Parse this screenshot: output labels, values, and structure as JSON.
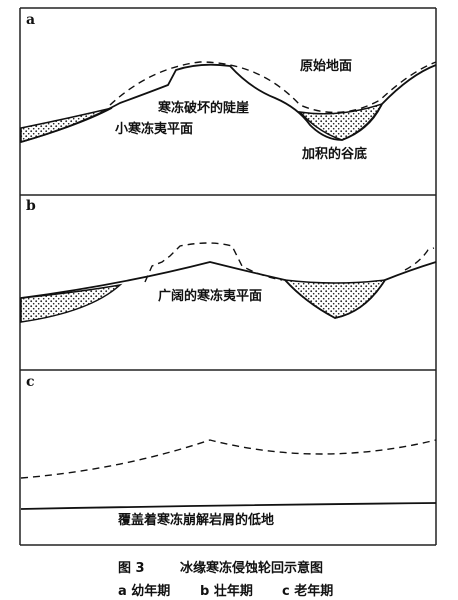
{
  "panels": [
    {
      "label": "a",
      "annotations": [
        "原始地面",
        "寒冻破坏的陡崖",
        "小寒冻夷平面",
        "加积的谷底"
      ]
    },
    {
      "label": "b",
      "annotations": [
        "广阔的寒冻夷平面"
      ]
    },
    {
      "label": "c",
      "annotations": [
        "覆盖着寒冻崩解岩屑的低地"
      ]
    }
  ],
  "caption": {
    "figure_number": "图 3",
    "title": "冰缘寒冻侵蚀轮回示意图",
    "stages": [
      "a 幼年期",
      "b 壮年期",
      "c 老年期"
    ]
  }
}
